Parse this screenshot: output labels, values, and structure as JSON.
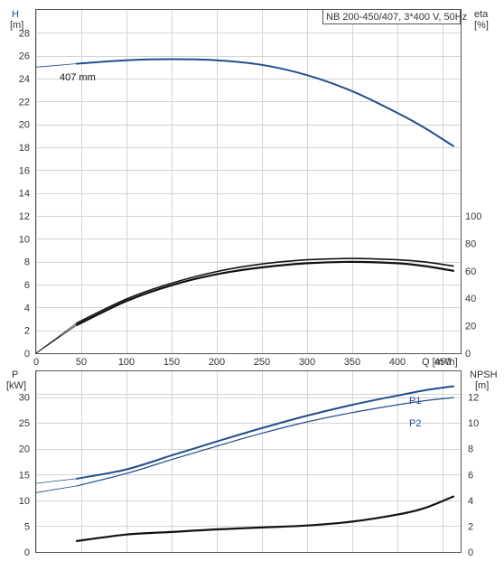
{
  "chart_data": [
    {
      "type": "line",
      "panel": "head-efficiency",
      "title": "NB 200-450/407, 3*400 V, 50Hz",
      "xlabel": "Q [m³/h]",
      "xlim": [
        0,
        470
      ],
      "x_ticks": [
        0,
        50,
        100,
        150,
        200,
        250,
        300,
        350,
        400,
        450
      ],
      "ylabel": "H",
      "ylabel_unit": "[m]",
      "ylim": [
        0,
        30
      ],
      "y_ticks": [
        0,
        2,
        4,
        6,
        8,
        10,
        12,
        14,
        16,
        18,
        20,
        22,
        24,
        26,
        28
      ],
      "y2label": "eta",
      "y2label_unit": "[%]",
      "y2lim": [
        0,
        250
      ],
      "y2_ticks": [
        0,
        20,
        40,
        60,
        80,
        100
      ],
      "grid": true,
      "series": [
        {
          "name": "407 mm",
          "axis": "left",
          "color": "#1f4e8c",
          "x": [
            0,
            45,
            100,
            150,
            200,
            250,
            300,
            350,
            400,
            430,
            462
          ],
          "values": [
            25.0,
            25.3,
            25.6,
            25.7,
            25.6,
            25.2,
            24.3,
            22.9,
            21.0,
            19.7,
            18.1
          ]
        },
        {
          "name": "",
          "axis": "right",
          "color": "#111111",
          "x": [
            0,
            45,
            100,
            150,
            200,
            250,
            300,
            350,
            400,
            430,
            462
          ],
          "values": [
            0,
            20.5,
            38,
            49.5,
            57.5,
            62.5,
            65.5,
            66.5,
            65.5,
            63.5,
            60
          ]
        },
        {
          "name": "",
          "axis": "right",
          "color": "#111111",
          "x": [
            0,
            45,
            100,
            150,
            200,
            250,
            300,
            350,
            400,
            430,
            462
          ],
          "values": [
            0,
            22,
            39.5,
            51,
            59.5,
            65,
            68,
            69,
            68,
            66.5,
            63.5
          ]
        }
      ]
    },
    {
      "type": "line",
      "panel": "power-npsh",
      "xlim": [
        0,
        470
      ],
      "ylabel": "P",
      "ylabel_unit": "[kW]",
      "ylim": [
        0,
        35
      ],
      "y_ticks": [
        0,
        5,
        10,
        15,
        20,
        25,
        30
      ],
      "y2label": "NPSH",
      "y2label_unit": "[m]",
      "y2lim": [
        0,
        14
      ],
      "y2_ticks": [
        0,
        2,
        4,
        6,
        8,
        10,
        12
      ],
      "grid": true,
      "series": [
        {
          "name": "P1",
          "axis": "left",
          "color": "#1f4e8c",
          "x": [
            0,
            45,
            100,
            150,
            200,
            250,
            300,
            350,
            400,
            430,
            462
          ],
          "values": [
            13.3,
            14.2,
            16.0,
            18.7,
            21.4,
            24.0,
            26.4,
            28.5,
            30.3,
            31.3,
            32.1
          ]
        },
        {
          "name": "P2",
          "axis": "left",
          "color": "#1f4e8c",
          "x": [
            0,
            45,
            100,
            150,
            200,
            250,
            300,
            350,
            400,
            430,
            462
          ],
          "values": [
            11.5,
            12.8,
            15.2,
            17.9,
            20.5,
            23.0,
            25.2,
            27.0,
            28.5,
            29.3,
            29.9
          ]
        },
        {
          "name": "",
          "axis": "right",
          "color": "#111111",
          "x": [
            45,
            100,
            150,
            200,
            250,
            300,
            350,
            400,
            430,
            462
          ],
          "values": [
            0.85,
            1.35,
            1.55,
            1.75,
            1.9,
            2.05,
            2.35,
            2.9,
            3.4,
            4.3
          ]
        }
      ]
    }
  ]
}
